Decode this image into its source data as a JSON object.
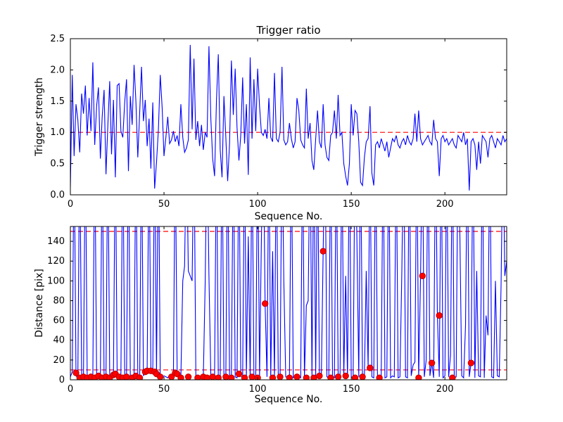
{
  "figure": {
    "background": "#ffffff",
    "line_color": "#0000ff",
    "threshold_color": "#ff0000",
    "marker_color": "#ff0000",
    "marker_edge_color": "#bb0000",
    "axis_color": "#000000"
  },
  "chart_data": [
    {
      "type": "line",
      "title": "Trigger ratio",
      "xlabel": "Sequence No.",
      "ylabel": "Trigger strength",
      "xlim": [
        0,
        233
      ],
      "ylim": [
        0,
        2.5
      ],
      "xticks": [
        0,
        50,
        100,
        150,
        200
      ],
      "xtick_labels": [
        "0",
        "50",
        "100",
        "150",
        "200"
      ],
      "yticks": [
        0,
        0.5,
        1.0,
        1.5,
        2.0,
        2.5
      ],
      "ytick_labels": [
        "0.0",
        "0.5",
        "1.0",
        "1.5",
        "2.0",
        "2.5"
      ],
      "threshold_lines": [
        1.0
      ],
      "grid": false,
      "legend": "none",
      "series": [
        {
          "name": "trigger-strength",
          "style": "solid",
          "values": [
            0.12,
            1.92,
            0.62,
            1.45,
            1.2,
            0.68,
            1.62,
            1.3,
            1.75,
            0.95,
            1.55,
            1.02,
            2.12,
            0.8,
            1.42,
            1.72,
            0.58,
            1.25,
            1.68,
            0.33,
            1.1,
            1.82,
            0.65,
            1.52,
            0.28,
            1.75,
            1.78,
            1.02,
            0.92,
            1.48,
            1.85,
            0.38,
            1.58,
            1.12,
            2.08,
            1.5,
            0.6,
            1.32,
            2.05,
            1.18,
            1.52,
            0.78,
            1.22,
            0.42,
            1.48,
            0.1,
            0.52,
            1.05,
            1.92,
            1.4,
            0.62,
            0.92,
            1.25,
            0.82,
            0.88,
            1.02,
            0.85,
            0.95,
            0.78,
            1.45,
            0.92,
            0.68,
            0.75,
            0.88,
            2.4,
            1.05,
            2.18,
            0.88,
            1.18,
            0.78,
            1.12,
            0.72,
            1.0,
            0.92,
            2.38,
            1.22,
            0.58,
            0.3,
            1.52,
            2.25,
            0.72,
            0.28,
            1.58,
            0.92,
            0.22,
            0.82,
            2.15,
            1.28,
            2.02,
            1.08,
            0.55,
            0.95,
            1.88,
            0.82,
            1.45,
            0.32,
            2.2,
            0.9,
            1.85,
            1.02,
            2.02,
            1.42,
            1.0,
            0.95,
            1.05,
            0.9,
            1.55,
            0.92,
            0.85,
            1.95,
            0.9,
            0.85,
            1.0,
            2.05,
            0.88,
            0.8,
            0.85,
            1.15,
            0.9,
            0.75,
            0.85,
            1.55,
            1.35,
            0.88,
            0.8,
            0.75,
            1.7,
            0.9,
            1.15,
            0.55,
            0.4,
            0.9,
            1.35,
            0.85,
            0.75,
            1.45,
            0.8,
            0.6,
            0.55,
            0.95,
            1.0,
            1.35,
            0.9,
            1.6,
            0.95,
            1.0,
            0.5,
            0.3,
            0.15,
            0.5,
            1.45,
            0.95,
            1.35,
            1.3,
            0.85,
            0.2,
            0.15,
            0.6,
            0.85,
            0.9,
            1.42,
            0.35,
            0.15,
            0.8,
            0.85,
            0.75,
            0.9,
            0.8,
            0.7,
            0.85,
            0.6,
            0.75,
            0.9,
            0.85,
            0.95,
            0.8,
            0.75,
            0.85,
            0.9,
            0.8,
            0.95,
            0.85,
            0.8,
            0.9,
            1.3,
            0.85,
            1.35,
            0.9,
            0.8,
            0.85,
            0.9,
            0.95,
            0.85,
            0.8,
            1.2,
            0.9,
            0.85,
            0.3,
            0.9,
            0.95,
            0.85,
            0.9,
            0.8,
            0.85,
            0.9,
            0.8,
            0.75,
            0.95,
            0.9,
            0.85,
            1.0,
            0.8,
            0.9,
            0.07,
            0.85,
            0.9,
            0.8,
            0.4,
            0.85,
            0.5,
            0.95,
            0.9,
            0.85,
            0.6,
            0.9,
            0.95,
            0.85,
            0.75,
            0.9,
            0.85,
            0.8,
            0.95,
            0.85,
            0.9
          ]
        }
      ]
    },
    {
      "type": "line",
      "title": "",
      "xlabel": "Sequence No.",
      "ylabel": "Distance [pix]",
      "xlim": [
        0,
        233
      ],
      "ylim": [
        0,
        155
      ],
      "xticks": [
        0,
        50,
        100,
        150,
        200
      ],
      "xtick_labels": [
        "0",
        "50",
        "100",
        "150",
        "200"
      ],
      "yticks": [
        0,
        20,
        40,
        60,
        80,
        100,
        120,
        140
      ],
      "ytick_labels": [
        "0",
        "20",
        "40",
        "60",
        "80",
        "100",
        "120",
        "140"
      ],
      "threshold_lines": [
        150,
        10
      ],
      "grid": false,
      "legend": "none",
      "series": [
        {
          "name": "distance",
          "style": "solid",
          "values": [
            3,
            8,
            300,
            4,
            2,
            300,
            3,
            2,
            300,
            3,
            2,
            4,
            3,
            300,
            2,
            3,
            2,
            300,
            4,
            2,
            300,
            3,
            2,
            4,
            300,
            2,
            3,
            5,
            300,
            2,
            4,
            300,
            2,
            3,
            6,
            300,
            3,
            2,
            300,
            4,
            8,
            10,
            300,
            9,
            8,
            300,
            6,
            300,
            3,
            2,
            4,
            3,
            2,
            5,
            3,
            2,
            300,
            8,
            3,
            2,
            100,
            115,
            300,
            110,
            105,
            100,
            300,
            4,
            3,
            2,
            3,
            2,
            100,
            300,
            105,
            3,
            2,
            4,
            300,
            2,
            3,
            300,
            2,
            4,
            300,
            3,
            2,
            300,
            3,
            2,
            300,
            4,
            2,
            300,
            3,
            145,
            2,
            300,
            3,
            2,
            300,
            3,
            140,
            300,
            77,
            3,
            300,
            2,
            130,
            3,
            300,
            4,
            2,
            300,
            100,
            3,
            2,
            4,
            300,
            2,
            3,
            2,
            4,
            2,
            300,
            3,
            75,
            80,
            300,
            2,
            300,
            4,
            300,
            2,
            3,
            130,
            300,
            3,
            2,
            300,
            3,
            2,
            300,
            4,
            2,
            300,
            3,
            105,
            2,
            300,
            3,
            2,
            300,
            145,
            3,
            300,
            2,
            4,
            110,
            12,
            300,
            3,
            2,
            300,
            4,
            2,
            3,
            300,
            2,
            3,
            300,
            2,
            4,
            3,
            300,
            2,
            3,
            110,
            300,
            3,
            2,
            300,
            4,
            15,
            18,
            300,
            2,
            105,
            300,
            3,
            20,
            300,
            4,
            17,
            2,
            300,
            65,
            3,
            300,
            2,
            4,
            300,
            3,
            25,
            300,
            2,
            3,
            300,
            145,
            4,
            2,
            55,
            300,
            3,
            17,
            300,
            2,
            110,
            4,
            3,
            300,
            2,
            65,
            45,
            300,
            3,
            2,
            100,
            4,
            3,
            95,
            300,
            105,
            120
          ]
        }
      ],
      "markers": [
        [
          3,
          7
        ],
        [
          5,
          2
        ],
        [
          7,
          3
        ],
        [
          9,
          2
        ],
        [
          11,
          3
        ],
        [
          13,
          2
        ],
        [
          15,
          4
        ],
        [
          17,
          2
        ],
        [
          19,
          3
        ],
        [
          21,
          2
        ],
        [
          23,
          5
        ],
        [
          24,
          6
        ],
        [
          26,
          3
        ],
        [
          28,
          2
        ],
        [
          30,
          3
        ],
        [
          33,
          2
        ],
        [
          35,
          4
        ],
        [
          37,
          2
        ],
        [
          40,
          8
        ],
        [
          41,
          9
        ],
        [
          43,
          9
        ],
        [
          45,
          8
        ],
        [
          46,
          6
        ],
        [
          48,
          3
        ],
        [
          54,
          3
        ],
        [
          56,
          7
        ],
        [
          57,
          6
        ],
        [
          59,
          2
        ],
        [
          63,
          3
        ],
        [
          68,
          2
        ],
        [
          71,
          3
        ],
        [
          73,
          2
        ],
        [
          76,
          3
        ],
        [
          79,
          2
        ],
        [
          83,
          3
        ],
        [
          86,
          2
        ],
        [
          90,
          6
        ],
        [
          93,
          2
        ],
        [
          97,
          3
        ],
        [
          100,
          2
        ],
        [
          104,
          77
        ],
        [
          108,
          2
        ],
        [
          112,
          3
        ],
        [
          117,
          2
        ],
        [
          121,
          3
        ],
        [
          126,
          2
        ],
        [
          130,
          2
        ],
        [
          133,
          4
        ],
        [
          135,
          130
        ],
        [
          139,
          2
        ],
        [
          143,
          3
        ],
        [
          147,
          4
        ],
        [
          152,
          2
        ],
        [
          156,
          3
        ],
        [
          160,
          12
        ],
        [
          165,
          2
        ],
        [
          186,
          2
        ],
        [
          188,
          105
        ],
        [
          193,
          17
        ],
        [
          197,
          65
        ],
        [
          204,
          2
        ],
        [
          214,
          17
        ]
      ]
    }
  ]
}
